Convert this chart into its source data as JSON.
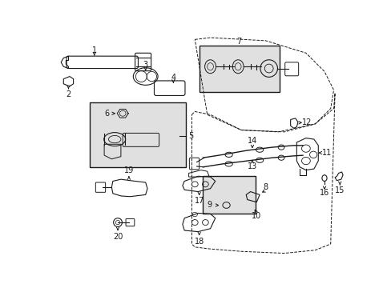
{
  "bg_color": "#ffffff",
  "line_color": "#1a1a1a",
  "box_fill": "#e0e0e0",
  "figsize": [
    4.89,
    3.6
  ],
  "dpi": 100
}
